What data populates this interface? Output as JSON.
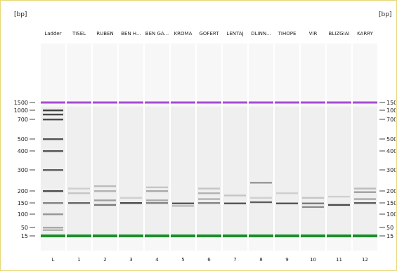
{
  "units": {
    "left": "[bp]",
    "right": "[bp]"
  },
  "lanes": [
    {
      "name": "Ladder",
      "number": "L",
      "bands": []
    },
    {
      "name": "TISEL",
      "number": "1",
      "bands": [
        {
          "bp": 150,
          "i": 0.7
        },
        {
          "bp": 190,
          "i": 0.2
        },
        {
          "bp": 210,
          "i": 0.15
        }
      ]
    },
    {
      "name": "RUBEN",
      "number": "2",
      "bands": [
        {
          "bp": 140,
          "i": 0.6
        },
        {
          "bp": 160,
          "i": 0.4
        },
        {
          "bp": 200,
          "i": 0.3
        },
        {
          "bp": 220,
          "i": 0.25
        }
      ]
    },
    {
      "name": "BEN H...",
      "number": "3",
      "bands": [
        {
          "bp": 150,
          "i": 0.85
        },
        {
          "bp": 170,
          "i": 0.15
        }
      ]
    },
    {
      "name": "BEN GA...",
      "number": "4",
      "bands": [
        {
          "bp": 150,
          "i": 0.55
        },
        {
          "bp": 160,
          "i": 0.35
        },
        {
          "bp": 200,
          "i": 0.35
        },
        {
          "bp": 215,
          "i": 0.2
        }
      ]
    },
    {
      "name": "KROMA",
      "number": "5",
      "bands": [
        {
          "bp": 148,
          "i": 0.8
        },
        {
          "bp": 135,
          "i": 0.25
        }
      ]
    },
    {
      "name": "GOFERT",
      "number": "6",
      "bands": [
        {
          "bp": 150,
          "i": 0.55
        },
        {
          "bp": 165,
          "i": 0.3
        },
        {
          "bp": 190,
          "i": 0.3
        },
        {
          "bp": 210,
          "i": 0.2
        }
      ]
    },
    {
      "name": "LENTAJ",
      "number": "7",
      "bands": [
        {
          "bp": 148,
          "i": 0.8
        },
        {
          "bp": 180,
          "i": 0.2
        }
      ]
    },
    {
      "name": "DLINN...",
      "number": "8",
      "bands": [
        {
          "bp": 153,
          "i": 0.75
        },
        {
          "bp": 235,
          "i": 0.45
        },
        {
          "bp": 170,
          "i": 0.15
        }
      ]
    },
    {
      "name": "TIHOPE",
      "number": "9",
      "bands": [
        {
          "bp": 148,
          "i": 0.8
        },
        {
          "bp": 190,
          "i": 0.15
        }
      ]
    },
    {
      "name": "VIR",
      "number": "10",
      "bands": [
        {
          "bp": 148,
          "i": 0.6
        },
        {
          "bp": 130,
          "i": 0.5
        },
        {
          "bp": 170,
          "i": 0.2
        }
      ]
    },
    {
      "name": "BLIZGIAI",
      "number": "11",
      "bands": [
        {
          "bp": 140,
          "i": 0.85
        },
        {
          "bp": 175,
          "i": 0.15
        }
      ]
    },
    {
      "name": "KARRY",
      "number": "12",
      "bands": [
        {
          "bp": 150,
          "i": 0.75
        },
        {
          "bp": 165,
          "i": 0.35
        },
        {
          "bp": 195,
          "i": 0.4
        },
        {
          "bp": 210,
          "i": 0.25
        }
      ]
    }
  ],
  "markers": [
    {
      "bp": 1500,
      "label": "1500"
    },
    {
      "bp": 1000,
      "label": "1000"
    },
    {
      "bp": 700,
      "label": "700"
    },
    {
      "bp": 500,
      "label": "500"
    },
    {
      "bp": 400,
      "label": "400"
    },
    {
      "bp": 300,
      "label": "300"
    },
    {
      "bp": 200,
      "label": "200"
    },
    {
      "bp": 150,
      "label": "150"
    },
    {
      "bp": 100,
      "label": "100"
    },
    {
      "bp": 50,
      "label": "50"
    },
    {
      "bp": 15,
      "label": "15"
    }
  ],
  "ladder_bands": [
    {
      "bp": 1000,
      "i": 0.9
    },
    {
      "bp": 850,
      "i": 0.85
    },
    {
      "bp": 700,
      "i": 0.85
    },
    {
      "bp": 500,
      "i": 0.8
    },
    {
      "bp": 400,
      "i": 0.8
    },
    {
      "bp": 300,
      "i": 0.75
    },
    {
      "bp": 200,
      "i": 0.85
    },
    {
      "bp": 150,
      "i": 0.55
    },
    {
      "bp": 100,
      "i": 0.45
    },
    {
      "bp": 50,
      "i": 0.35
    },
    {
      "bp": 35,
      "i": 0.3
    }
  ],
  "colors": {
    "upper_marker": "#a64dd6",
    "lower_marker": "#1a8c2a",
    "band": "#3a3a3a",
    "tick": "#444444",
    "frame": "#e8d77a"
  }
}
